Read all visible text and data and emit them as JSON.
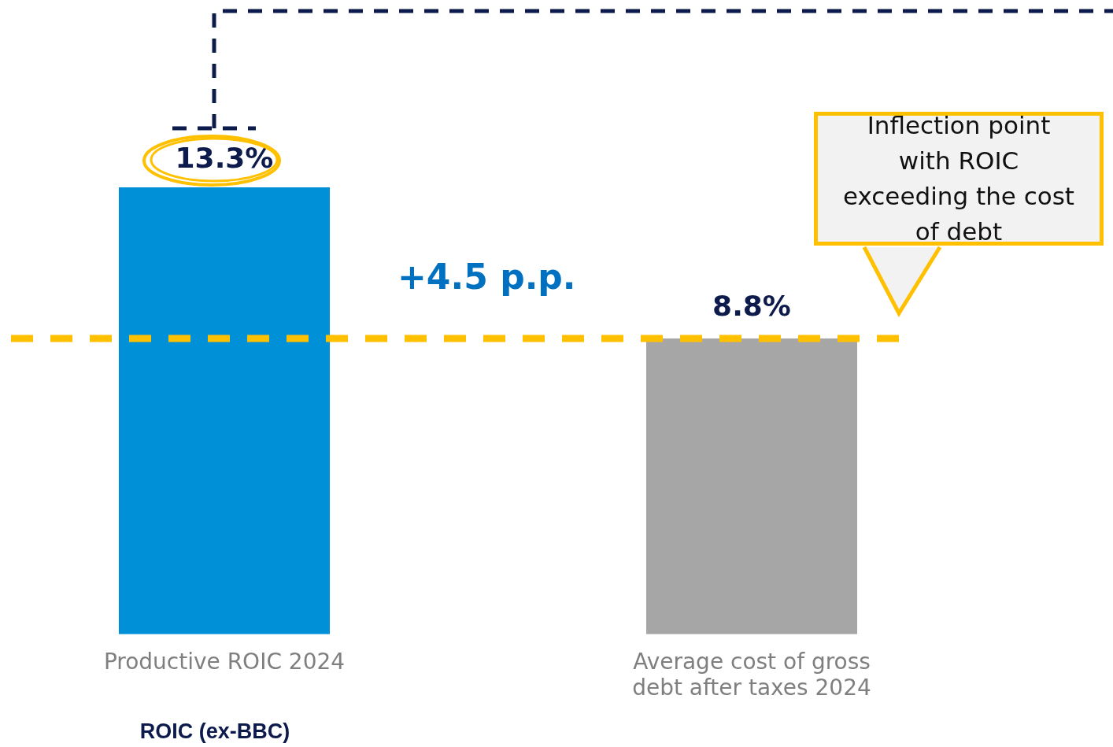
{
  "chart_data": {
    "type": "bar",
    "categories": [
      "Productive ROIC 2024",
      "Average cost of gross debt after taxes 2024"
    ],
    "colors": [
      "#0090d8",
      "#a6a6a6"
    ],
    "values": [
      13.3,
      8.8
    ],
    "value_labels": [
      "13.3%",
      "8.8%"
    ],
    "legend": false,
    "ref_lines": [
      {
        "axis": "y",
        "value": 8.8,
        "color": "#ffc000",
        "line_style": "dashed"
      }
    ],
    "annotations": [
      "ROIC (ex-BBC)",
      "+4.5 p.p.",
      "Inflection point with ROIC exceeding the cost of debt"
    ]
  }
}
